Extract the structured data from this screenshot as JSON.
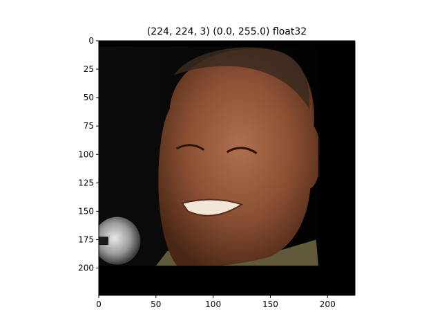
{
  "chart_data": {
    "type": "image",
    "title": "(224, 224, 3) (0.0, 255.0) float32",
    "xlim": [
      0,
      224
    ],
    "ylim": [
      224,
      0
    ],
    "x_ticks": [
      0,
      50,
      100,
      150,
      200
    ],
    "y_ticks": [
      0,
      25,
      50,
      75,
      100,
      125,
      150,
      175,
      200
    ],
    "image_shape": [
      224,
      224,
      3
    ],
    "content": {
      "subject": "face-photo",
      "background_color": "#000000",
      "photo_region": {
        "x": [
          0,
          192
        ],
        "y": [
          5,
          198
        ]
      },
      "microphone_region": {
        "x": [
          0,
          36
        ],
        "y": [
          155,
          197
        ]
      }
    }
  }
}
